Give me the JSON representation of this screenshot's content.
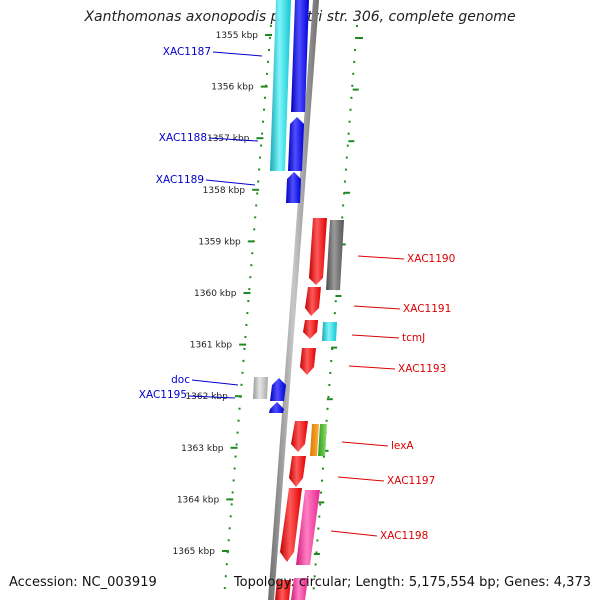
{
  "title": "Xanthomonas axonopodis pv. citri str. 306, complete genome",
  "accession": "Accession: NC_003919",
  "topology": "Topology: circular; Length: 5,175,554 bp; Genes: 4,373",
  "colors": {
    "left_label": "#0000cc",
    "right_label": "#dd0000",
    "tick_green": "#1f8a1f",
    "backbone": "#8a8a8a"
  },
  "kbp_ticks": [
    {
      "label": "1355 kbp",
      "kbp": 1355
    },
    {
      "label": "1356 kbp",
      "kbp": 1356
    },
    {
      "label": "1357 kbp",
      "kbp": 1357
    },
    {
      "label": "1358 kbp",
      "kbp": 1358
    },
    {
      "label": "1359 kbp",
      "kbp": 1359
    },
    {
      "label": "1360 kbp",
      "kbp": 1360
    },
    {
      "label": "1361 kbp",
      "kbp": 1361
    },
    {
      "label": "1362 kbp",
      "kbp": 1362
    },
    {
      "label": "1363 kbp",
      "kbp": 1363
    },
    {
      "label": "1364 kbp",
      "kbp": 1364
    },
    {
      "label": "1365 kbp",
      "kbp": 1365
    }
  ],
  "genes_left": [
    {
      "name": "XAC1187"
    },
    {
      "name": "XAC1188"
    },
    {
      "name": "XAC1189"
    },
    {
      "name": "doc"
    },
    {
      "name": "XAC1195"
    }
  ],
  "genes_right": [
    {
      "name": "XAC1190"
    },
    {
      "name": "XAC1191"
    },
    {
      "name": "tcmJ"
    },
    {
      "name": "XAC1193"
    },
    {
      "name": "lexA"
    },
    {
      "name": "XAC1197"
    },
    {
      "name": "XAC1198"
    }
  ]
}
